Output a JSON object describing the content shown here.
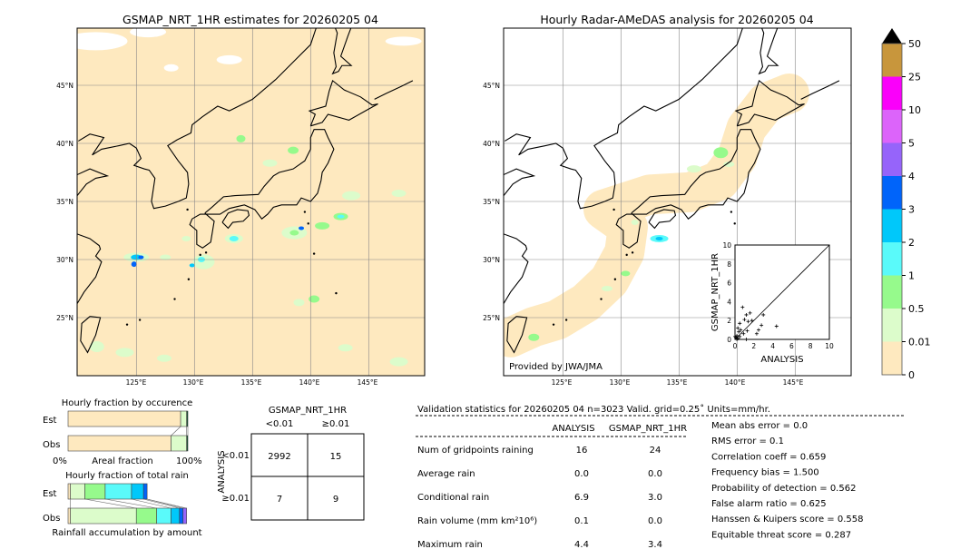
{
  "left_map": {
    "title": "GSMAP_NRT_1HR estimates for 20260205 04",
    "lon_ticks": [
      "125°E",
      "130°E",
      "135°E",
      "140°E",
      "145°E"
    ],
    "lat_ticks": [
      "45°N",
      "40°N",
      "35°N",
      "30°N",
      "25°N"
    ]
  },
  "right_map": {
    "title": "Hourly Radar-AMeDAS analysis for 20260205 04",
    "lon_ticks": [
      "125°E",
      "130°E",
      "135°E",
      "140°E",
      "145°E"
    ],
    "lat_ticks": [
      "45°N",
      "40°N",
      "35°N",
      "30°N",
      "25°N"
    ],
    "credit": "Provided by JWA/JMA"
  },
  "colorbar": {
    "labels": [
      "0",
      "0.01",
      "0.5",
      "1",
      "2",
      "3",
      "4",
      "5",
      "10",
      "25",
      "50"
    ],
    "colors": [
      "#fee9bf",
      "#dcfccb",
      "#96fa8c",
      "#5afafa",
      "#00c8fa",
      "#0064fa",
      "#9664fa",
      "#dc64fa",
      "#fa00fa",
      "#c8963c"
    ],
    "extend_color": "#000000"
  },
  "occurrence": {
    "title": "Hourly fraction by occurence",
    "row_labels": [
      "Est",
      "Obs"
    ],
    "xlabel": "Areal fraction",
    "xmin_label": "0%",
    "xmax_label": "100%"
  },
  "total_rain": {
    "title": "Hourly fraction of total rain",
    "row_labels": [
      "Est",
      "Obs"
    ],
    "xlabel": "Rainfall accumulation by amount"
  },
  "contingency": {
    "col_title": "GSMAP_NRT_1HR",
    "col_labels": [
      "<0.01",
      "≥0.01"
    ],
    "row_title": "ANALYSIS",
    "row_labels": [
      "<0.01",
      "≥0.01"
    ],
    "cells": [
      [
        "2992",
        "15"
      ],
      [
        "7",
        "9"
      ]
    ]
  },
  "stats": {
    "header": "Validation statistics for 20260205 04  n=3023 Valid. grid=0.25˚ Units=mm/hr.",
    "col_headers": [
      "ANALYSIS",
      "GSMAP_NRT_1HR"
    ],
    "rows": [
      {
        "label": "Num of gridpoints raining",
        "analysis": "16",
        "gsmap": "24"
      },
      {
        "label": "Average rain",
        "analysis": "0.0",
        "gsmap": "0.0"
      },
      {
        "label": "Conditional rain",
        "analysis": "6.9",
        "gsmap": "3.0"
      },
      {
        "label": "Rain volume (mm km²10⁶)",
        "analysis": "0.1",
        "gsmap": "0.0"
      },
      {
        "label": "Maximum rain",
        "analysis": "4.4",
        "gsmap": "3.4"
      }
    ],
    "scores": [
      "Mean abs error =    0.0",
      "RMS error =    0.1",
      "Correlation coeff =  0.659",
      "Frequency bias =  1.500",
      "Probability of detection =  0.562",
      "False alarm ratio =  0.625",
      "Hanssen & Kuipers score =  0.558",
      "Equitable threat score =  0.287"
    ]
  },
  "chart_data": [
    {
      "type": "scatter",
      "xlabel": "ANALYSIS",
      "ylabel": "GSMAP_NRT_1HR",
      "xlim": [
        0,
        10
      ],
      "ylim": [
        0,
        10
      ],
      "ticks": [
        "0",
        "2",
        "4",
        "6",
        "8",
        "10"
      ],
      "points": [
        [
          0.8,
          3.4
        ],
        [
          1.6,
          2.8
        ],
        [
          1.2,
          2.6
        ],
        [
          3.0,
          2.6
        ],
        [
          1.0,
          2.1
        ],
        [
          1.4,
          1.9
        ],
        [
          1.8,
          2.0
        ],
        [
          2.8,
          1.5
        ],
        [
          4.4,
          1.4
        ],
        [
          2.5,
          1.0
        ],
        [
          2.3,
          0.6
        ],
        [
          0.5,
          1.7
        ],
        [
          0.3,
          1.2
        ],
        [
          0.4,
          0.8
        ],
        [
          0.6,
          1.0
        ],
        [
          0.2,
          0.4
        ],
        [
          0.1,
          0.2
        ],
        [
          0.3,
          0.1
        ],
        [
          1.3,
          0.9
        ],
        [
          0.9,
          0.6
        ],
        [
          0.5,
          0.3
        ],
        [
          1.2,
          0.0
        ],
        [
          0.2,
          0.0
        ],
        [
          0.0,
          0.3
        ]
      ]
    },
    {
      "type": "bar",
      "title": "Hourly fraction by occurence",
      "categories": [
        "Est",
        "Obs"
      ],
      "unit": "fraction",
      "series": [
        {
          "values": [
            0.94,
            0.86
          ]
        },
        {
          "values": [
            0.05,
            0.13
          ]
        },
        {
          "values": [
            0.01,
            0.01
          ]
        }
      ],
      "colors": [
        "#fee9bf",
        "#dcfccb",
        "#0b4a2a"
      ]
    },
    {
      "type": "bar",
      "title": "Hourly fraction of total rain",
      "categories": [
        "Est",
        "Obs"
      ],
      "unit": "fraction",
      "series": [
        {
          "values": [
            0.02,
            0.02
          ]
        },
        {
          "values": [
            0.12,
            0.55
          ]
        },
        {
          "values": [
            0.17,
            0.17
          ]
        },
        {
          "values": [
            0.22,
            0.12
          ]
        },
        {
          "values": [
            0.1,
            0.07
          ]
        },
        {
          "values": [
            0.03,
            0.03
          ]
        },
        {
          "values": [
            0.0,
            0.03
          ]
        }
      ],
      "colors": [
        "#fee9bf",
        "#dcfccb",
        "#96fa8c",
        "#5afafa",
        "#00c8fa",
        "#0064fa",
        "#9664fa"
      ]
    }
  ]
}
